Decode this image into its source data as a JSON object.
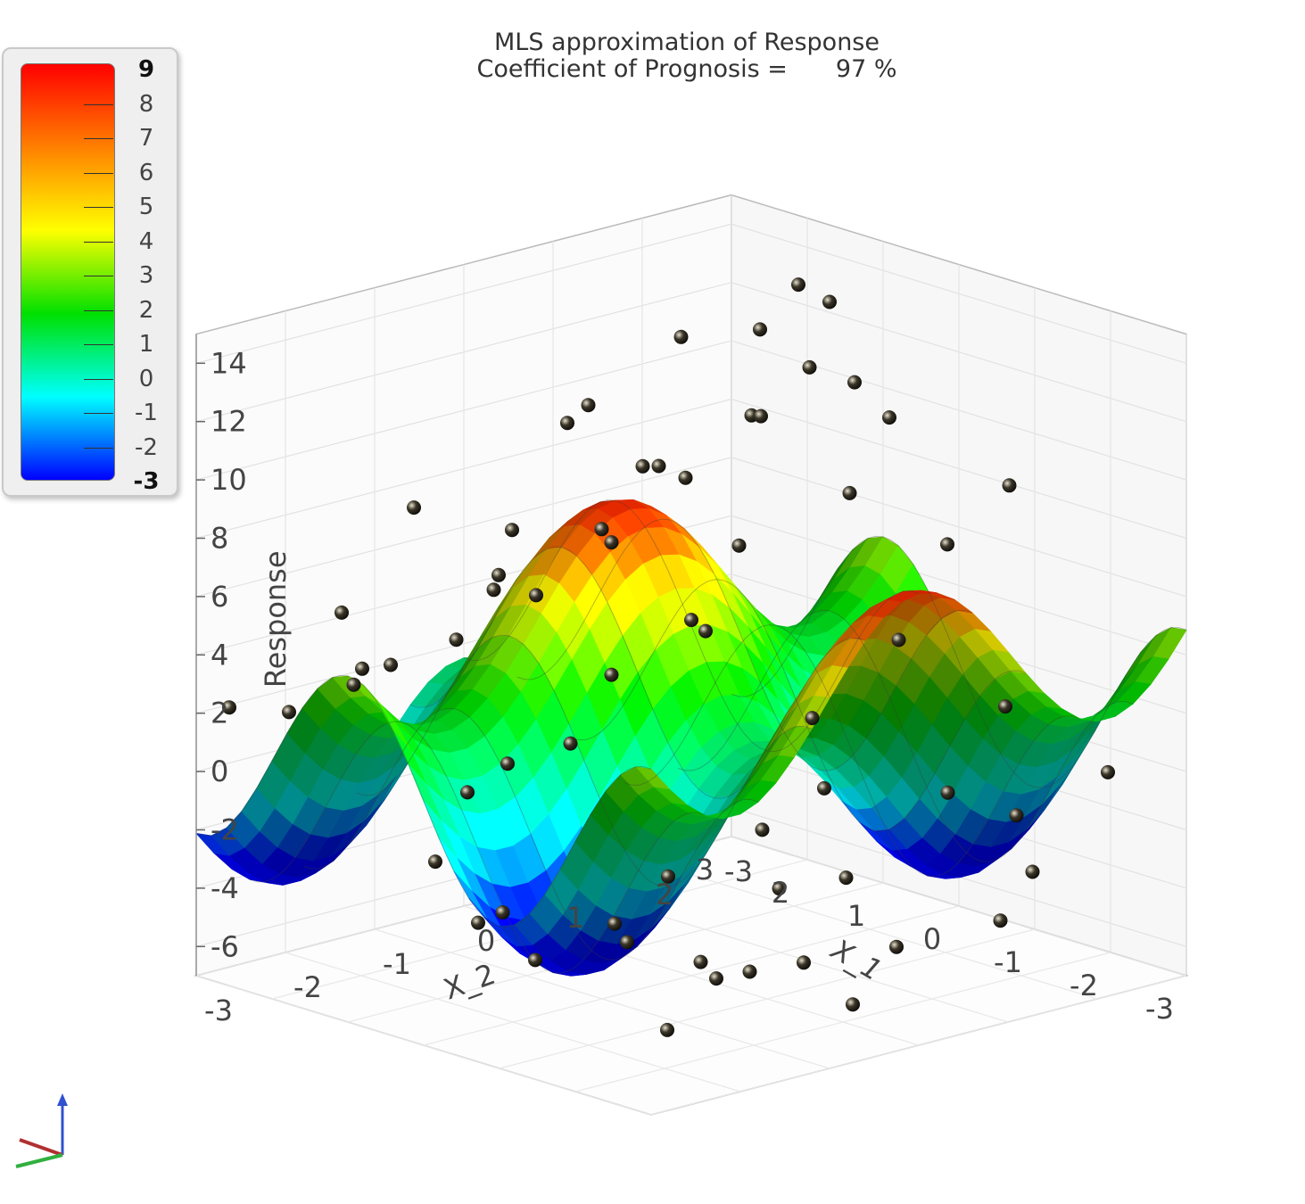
{
  "chart_data": {
    "type": "surface3d",
    "title": "MLS approximation of Response",
    "subtitle_label": "Coefficient of Prognosis =",
    "subtitle_value": "97 %",
    "xlabel": "X_1",
    "ylabel": "X_2",
    "zlabel": "Response",
    "x_ticks": [
      "3",
      "2",
      "1",
      "0",
      "-1",
      "-2",
      "-3"
    ],
    "y_ticks": [
      "-3",
      "2",
      "1",
      "0",
      "-1",
      "-2",
      "-3"
    ],
    "z_ticks": [
      "14",
      "12",
      "10",
      "8",
      "6",
      "4",
      "2",
      "0",
      "-2",
      "-4",
      "-6"
    ],
    "xlim": [
      -3,
      3
    ],
    "ylim": [
      -3,
      3
    ],
    "zlim": [
      -7,
      15
    ],
    "grid": true,
    "surface_model": "z = 2 + 3.5*sin(1.6*x) + 3*cos(1.5*y)",
    "colorbar": {
      "ticks": [
        "9",
        "8",
        "7",
        "6",
        "5",
        "4",
        "3",
        "2",
        "1",
        "0",
        "-1",
        "-2",
        "-3"
      ],
      "range": [
        -3,
        9
      ],
      "colors": [
        "#ff0000",
        "#ff8000",
        "#ffff00",
        "#00e000",
        "#00ffff",
        "#0000ff"
      ],
      "placement": "top-left"
    },
    "surface_colors": {
      "high": "#e8281a",
      "mid": "#2ec21a",
      "low": "#0a1f7a"
    },
    "points_color": "#3a3528",
    "points": [
      [
        2.5,
        2.8,
        8.0
      ],
      [
        2.9,
        2.1,
        6.5
      ],
      [
        2.7,
        1.4,
        4.6
      ],
      [
        2.4,
        0.3,
        3.9
      ],
      [
        1.9,
        -0.6,
        5.2
      ],
      [
        2.2,
        -1.5,
        3.1
      ],
      [
        2.6,
        -2.3,
        1.8
      ],
      [
        2.8,
        -2.8,
        2.2
      ],
      [
        1.5,
        2.6,
        10.6
      ],
      [
        1.2,
        1.8,
        9.8
      ],
      [
        1.7,
        0.9,
        8.4
      ],
      [
        1.3,
        0.1,
        7.2
      ],
      [
        1.6,
        -0.8,
        6.1
      ],
      [
        1.1,
        -1.7,
        5.0
      ],
      [
        1.4,
        -2.5,
        4.4
      ],
      [
        1.8,
        2.3,
        11.9
      ],
      [
        0.8,
        2.9,
        9.2
      ],
      [
        0.5,
        2.2,
        7.4
      ],
      [
        0.9,
        1.3,
        6.0
      ],
      [
        0.4,
        0.5,
        4.1
      ],
      [
        0.7,
        -0.3,
        3.0
      ],
      [
        0.3,
        -1.1,
        1.6
      ],
      [
        0.6,
        -2.0,
        0.4
      ],
      [
        0.2,
        -2.7,
        -1.1
      ],
      [
        -0.2,
        2.7,
        5.8
      ],
      [
        -0.5,
        1.9,
        3.4
      ],
      [
        -0.3,
        1.1,
        1.2
      ],
      [
        -0.7,
        0.2,
        -1.6
      ],
      [
        -0.4,
        -0.6,
        -2.8
      ],
      [
        -0.8,
        -1.4,
        -4.1
      ],
      [
        -0.1,
        -2.2,
        -3.0
      ],
      [
        -0.6,
        -2.9,
        -2.4
      ],
      [
        -1.2,
        2.5,
        1.2
      ],
      [
        -1.5,
        1.6,
        -0.8
      ],
      [
        -1.1,
        0.8,
        -3.4
      ],
      [
        -1.6,
        -0.1,
        -5.2
      ],
      [
        -1.3,
        -1.0,
        -4.7
      ],
      [
        -1.8,
        -1.8,
        -6.0
      ],
      [
        -1.0,
        -2.6,
        -3.6
      ],
      [
        -1.7,
        2.2,
        -1.9
      ],
      [
        -2.2,
        2.8,
        -0.5
      ],
      [
        -2.5,
        1.7,
        -2.8
      ],
      [
        -2.0,
        0.6,
        -4.9
      ],
      [
        -2.6,
        -0.4,
        -5.6
      ],
      [
        -2.3,
        -1.3,
        -4.0
      ],
      [
        -2.8,
        -2.1,
        -3.2
      ],
      [
        -2.4,
        -2.9,
        -1.0
      ],
      [
        -2.9,
        1.0,
        -3.6
      ],
      [
        2.0,
        2.9,
        12.8
      ],
      [
        1.0,
        2.4,
        13.4
      ],
      [
        0.2,
        2.0,
        11.6
      ],
      [
        1.9,
        1.5,
        12.2
      ],
      [
        0.6,
        -1.5,
        9.0
      ],
      [
        2.3,
        0.8,
        10.1
      ],
      [
        -0.9,
        2.8,
        8.3
      ],
      [
        1.4,
        -0.2,
        11.0
      ],
      [
        2.6,
        -0.9,
        7.7
      ],
      [
        0.0,
        0.0,
        5.2
      ],
      [
        -0.4,
        -2.4,
        2.5
      ],
      [
        1.2,
        -2.9,
        6.8
      ],
      [
        -1.4,
        0.3,
        0.3
      ],
      [
        -2.1,
        -0.8,
        -1.7
      ],
      [
        2.1,
        -2.0,
        2.9
      ],
      [
        0.9,
        0.7,
        8.8
      ]
    ]
  }
}
